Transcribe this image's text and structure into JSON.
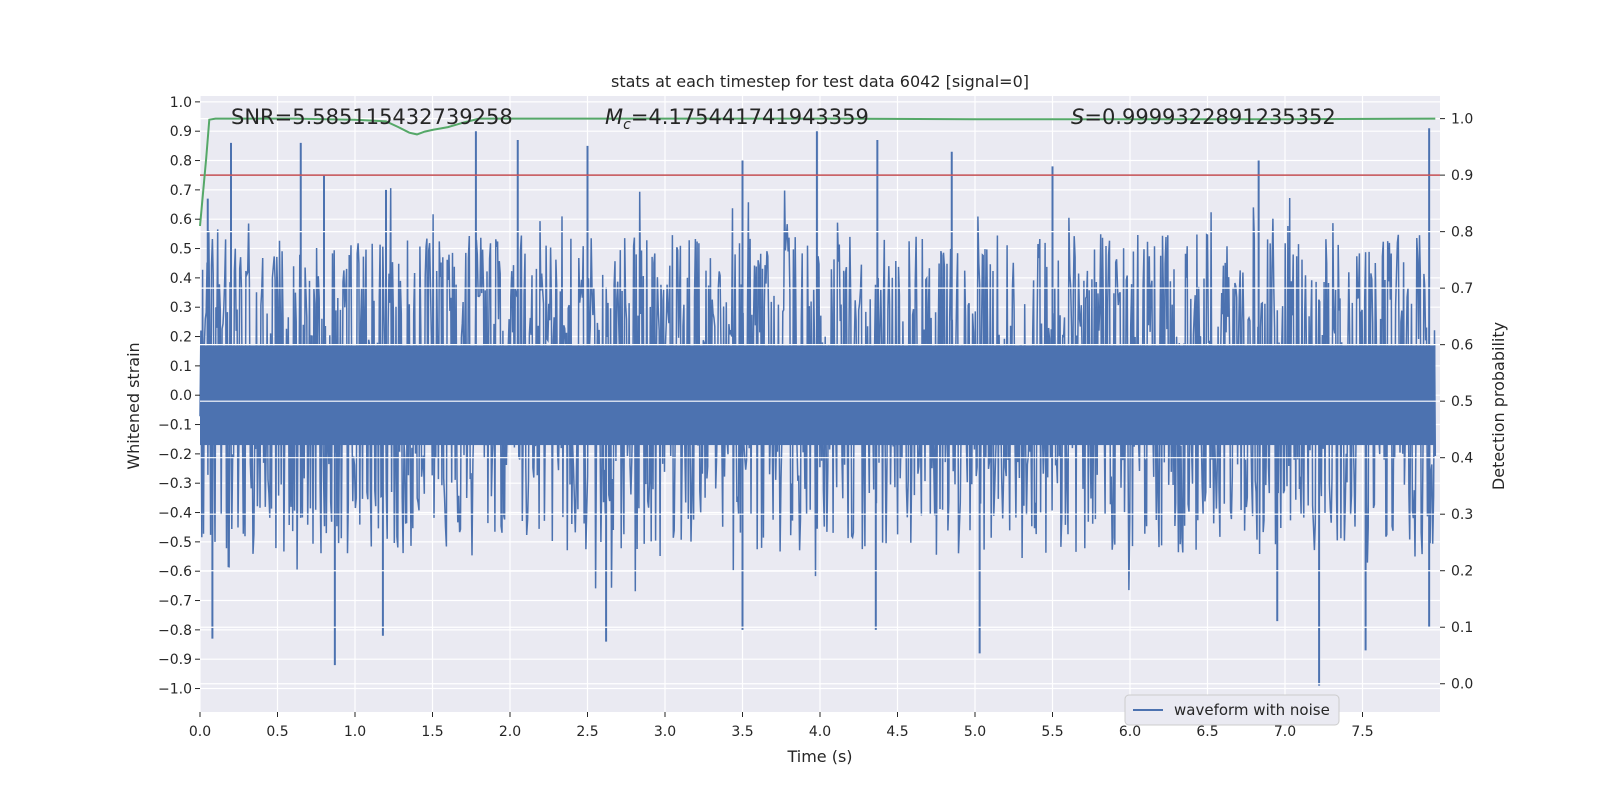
{
  "chart_data": {
    "type": "line",
    "title": "stats at each timestep for test data 6042 [signal=0]",
    "xlabel": "Time (s)",
    "ylabel": "Whitened strain",
    "y2label": "Detection probability",
    "xlim": [
      0.0,
      8.0
    ],
    "ylim": [
      -1.08,
      1.02
    ],
    "y2lim": [
      -0.05,
      1.04
    ],
    "xticks": [
      "0.0",
      "0.5",
      "1.0",
      "1.5",
      "2.0",
      "2.5",
      "3.0",
      "3.5",
      "4.0",
      "4.5",
      "5.0",
      "5.5",
      "6.0",
      "6.5",
      "7.0",
      "7.5"
    ],
    "yticks": [
      "1.0",
      "0.9",
      "0.8",
      "0.7",
      "0.6",
      "0.5",
      "0.4",
      "0.3",
      "0.2",
      "0.1",
      "0.0",
      "−0.1",
      "−0.2",
      "−0.3",
      "−0.4",
      "−0.5",
      "−0.6",
      "−0.7",
      "−0.8",
      "−0.9",
      "−1.0"
    ],
    "y2ticks": [
      "1.0",
      "0.9",
      "0.8",
      "0.7",
      "0.6",
      "0.5",
      "0.4",
      "0.3",
      "0.2",
      "0.1",
      "0.0"
    ],
    "annotations": {
      "snr": "SNR=5.585115432739258",
      "mc_symbol": "M",
      "mc_sub": "c",
      "mc_value": "=4.175441741943359",
      "s_symbol": "S",
      "s_value": "=0.9999322891235352"
    },
    "legend": {
      "entries": [
        "waveform with noise"
      ],
      "placement": "lower-right"
    },
    "threshold": {
      "value": 0.9,
      "axis": "right",
      "color": "#c44e52"
    },
    "series": [
      {
        "name": "waveform with noise",
        "color": "#4c72b0",
        "axis": "left",
        "style": "dense-noise",
        "sample_count": 1400,
        "envelope_max": 0.9,
        "envelope_min": -0.99,
        "top_peaks": [
          {
            "t": 0.05,
            "v": 0.67
          },
          {
            "t": 0.2,
            "v": 0.86
          },
          {
            "t": 0.65,
            "v": 0.86
          },
          {
            "t": 0.8,
            "v": 0.75
          },
          {
            "t": 1.2,
            "v": 0.7
          },
          {
            "t": 1.78,
            "v": 0.9
          },
          {
            "t": 2.05,
            "v": 0.87
          },
          {
            "t": 2.5,
            "v": 0.85
          },
          {
            "t": 3.5,
            "v": 0.8
          },
          {
            "t": 3.98,
            "v": 0.9
          },
          {
            "t": 4.37,
            "v": 0.87
          },
          {
            "t": 4.85,
            "v": 0.83
          },
          {
            "t": 5.5,
            "v": 0.78
          },
          {
            "t": 6.83,
            "v": 0.8
          },
          {
            "t": 7.93,
            "v": 0.91
          }
        ],
        "bottom_peaks": [
          {
            "t": 0.08,
            "v": -0.83
          },
          {
            "t": 0.87,
            "v": -0.92
          },
          {
            "t": 1.18,
            "v": -0.82
          },
          {
            "t": 2.62,
            "v": -0.84
          },
          {
            "t": 3.5,
            "v": -0.8
          },
          {
            "t": 4.36,
            "v": -0.8
          },
          {
            "t": 5.03,
            "v": -0.88
          },
          {
            "t": 6.95,
            "v": -0.77
          },
          {
            "t": 7.22,
            "v": -0.99
          },
          {
            "t": 7.52,
            "v": -0.87
          },
          {
            "t": 7.93,
            "v": -0.79
          }
        ]
      },
      {
        "name": "detection probability",
        "color": "#55a868",
        "axis": "right",
        "x": [
          0.0,
          0.02,
          0.04,
          0.06,
          0.1,
          0.15,
          0.3,
          0.6,
          1.0,
          1.2,
          1.28,
          1.35,
          1.4,
          1.45,
          1.5,
          1.6,
          1.7,
          1.8,
          2.0,
          3.0,
          4.0,
          5.0,
          6.0,
          7.0,
          7.97
        ],
        "y": [
          0.81,
          0.87,
          0.93,
          0.998,
          1.0,
          1.0,
          1.0,
          1.0,
          0.998,
          0.995,
          0.985,
          0.975,
          0.972,
          0.977,
          0.98,
          0.985,
          0.993,
          1.0,
          1.0,
          1.0,
          1.0,
          0.999,
          0.999,
          0.999,
          1.0
        ]
      }
    ]
  }
}
